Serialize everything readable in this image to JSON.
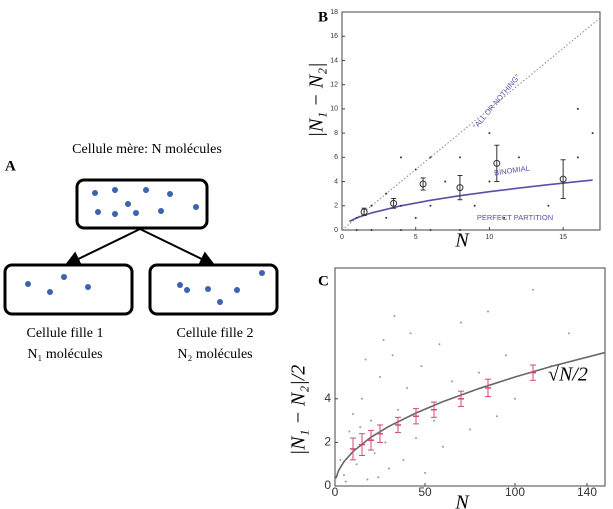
{
  "diagram": {
    "panel": "A",
    "title": "Cellule mère: N molécules",
    "children": [
      {
        "name": "Cellule fille 1",
        "count": "N₁ molécules"
      },
      {
        "name": "Cellule fille 2",
        "count": "N₂ molécules"
      }
    ]
  },
  "chart_data": [
    {
      "type": "scatter",
      "panel": "B",
      "xlabel": "N",
      "ylabel": "|N₁ − N₂|",
      "xlim": [
        0,
        17.5
      ],
      "ylim": [
        0,
        18
      ],
      "xticks": [
        0,
        5,
        10,
        15
      ],
      "yticks": [
        0,
        2,
        4,
        6,
        8,
        10,
        12,
        14,
        16,
        18
      ],
      "annotations": [
        "\"ALL OR NOTHING\"",
        "BINOMIAL",
        "PERFECT PARTITION"
      ],
      "series": [
        {
          "style": "dotted",
          "color": "#888888",
          "x": [
            0,
            17.5
          ],
          "values": [
            0,
            17.5
          ]
        },
        {
          "style": "line",
          "color": "#5a4fa8",
          "x": [
            0.5,
            1,
            2,
            4,
            6,
            8,
            10,
            12,
            14,
            16,
            17
          ],
          "values": [
            0.71,
            1,
            1.41,
            2,
            2.45,
            2.83,
            3.16,
            3.46,
            3.74,
            4,
            4.12
          ]
        },
        {
          "style": "dots",
          "color": "#333333",
          "x": [
            1,
            1,
            2,
            2,
            3,
            3,
            4,
            4,
            4,
            5,
            5,
            6,
            6,
            6,
            7,
            8,
            8,
            9,
            10,
            10,
            11,
            12,
            14,
            16,
            16,
            17
          ],
          "values": [
            0,
            1,
            0,
            2,
            1,
            3,
            0,
            2,
            6,
            1,
            5,
            0,
            2,
            6,
            4,
            0,
            6,
            2,
            4,
            8,
            1,
            6,
            2,
            6,
            10,
            8
          ]
        },
        {
          "style": "errorbar",
          "color": "#333333",
          "x": [
            1.5,
            3.5,
            5.5,
            8,
            10.5,
            15
          ],
          "values": [
            1.5,
            2.2,
            3.8,
            3.5,
            5.5,
            4.2
          ],
          "errors": [
            0.3,
            0.4,
            0.5,
            1,
            1.5,
            1.6
          ]
        }
      ]
    },
    {
      "type": "scatter",
      "panel": "C",
      "xlabel": "N",
      "ylabel": "|N₁ − N₂|/2",
      "curve_label": "√N/2",
      "xlim": [
        0,
        150
      ],
      "ylim": [
        0,
        10
      ],
      "xticks": [
        0,
        50,
        100,
        140
      ],
      "yticks": [
        0,
        2,
        4
      ],
      "series": [
        {
          "style": "dots",
          "color": "#999999",
          "x": [
            5,
            8,
            12,
            15,
            18,
            20,
            22,
            25,
            28,
            30,
            32,
            35,
            38,
            40,
            42,
            45,
            48,
            50,
            55,
            58,
            60,
            65,
            70,
            75,
            80,
            85,
            90,
            95,
            100,
            110,
            120,
            130,
            3,
            6,
            10,
            14,
            17,
            24,
            33,
            27
          ],
          "values": [
            0.5,
            2.5,
            1,
            4,
            0.3,
            3,
            1.5,
            5,
            2,
            0.8,
            6,
            3.5,
            1.2,
            4.5,
            7,
            2.2,
            5.5,
            0.6,
            3,
            6.5,
            1.8,
            4.8,
            7.5,
            2.6,
            5.2,
            8,
            3.2,
            6,
            4,
            9,
            5.5,
            7,
            1.2,
            0.2,
            3.3,
            2.7,
            5.8,
            0.4,
            7.8,
            6.7
          ]
        },
        {
          "style": "line",
          "color": "#666666",
          "x": [
            0.5,
            2,
            5,
            10,
            20,
            30,
            45,
            60,
            80,
            100,
            120,
            150
          ],
          "values": [
            0.35,
            0.71,
            1.12,
            1.58,
            2.24,
            2.74,
            3.35,
            3.87,
            4.47,
            5,
            5.48,
            6.12
          ]
        },
        {
          "style": "errorbar",
          "color": "#d04a7a",
          "x": [
            10,
            15,
            20,
            25,
            35,
            45,
            55,
            70,
            85,
            110
          ],
          "values": [
            1.7,
            1.9,
            2.1,
            2.4,
            2.8,
            3.2,
            3.5,
            4,
            4.5,
            5.2
          ],
          "errors": [
            0.5,
            0.5,
            0.45,
            0.4,
            0.35,
            0.35,
            0.35,
            0.35,
            0.4,
            0.35
          ]
        }
      ]
    }
  ]
}
